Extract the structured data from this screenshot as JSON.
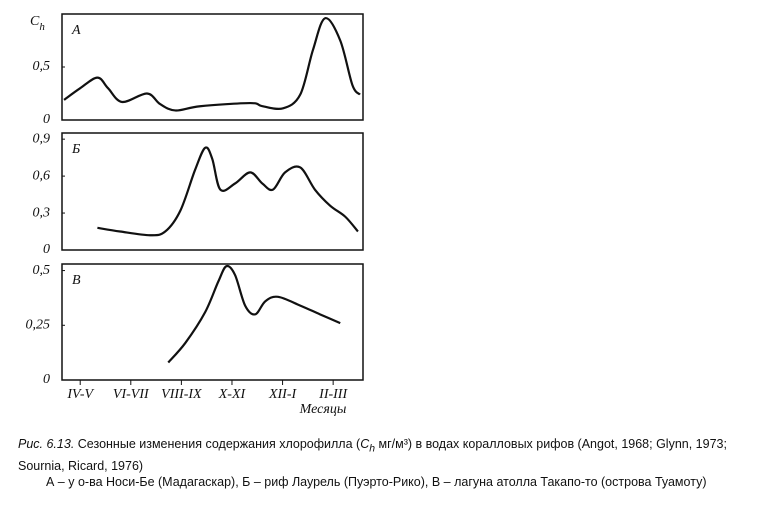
{
  "chart_data": [
    {
      "type": "line",
      "panel_label": "А",
      "ylabel": "C",
      "ylabel_sub": "h",
      "xlim": [
        -0.36,
        5.59
      ],
      "ylim": [
        0,
        1.0
      ],
      "yticks": [
        {
          "value": 0,
          "label": "0"
        },
        {
          "value": 0.5,
          "label": "0,5"
        }
      ],
      "series": [
        {
          "color": "#111111",
          "x": [
            -0.32,
            0,
            0.34,
            0.55,
            0.83,
            1.32,
            1.58,
            1.88,
            2.37,
            3.36,
            3.6,
            4.01,
            4.35,
            4.6,
            4.84,
            5.14,
            5.38,
            5.53
          ],
          "values": [
            0.19,
            0.3,
            0.4,
            0.3,
            0.17,
            0.25,
            0.15,
            0.09,
            0.13,
            0.16,
            0.13,
            0.11,
            0.24,
            0.66,
            0.96,
            0.75,
            0.33,
            0.24
          ]
        }
      ]
    },
    {
      "type": "line",
      "panel_label": "Б",
      "xlim": [
        -0.36,
        5.59
      ],
      "ylim": [
        0,
        0.95
      ],
      "yticks": [
        {
          "value": 0,
          "label": "0"
        },
        {
          "value": 0.3,
          "label": "0,3"
        },
        {
          "value": 0.6,
          "label": "0,6"
        },
        {
          "value": 0.9,
          "label": "0,9"
        }
      ],
      "series": [
        {
          "color": "#111111",
          "x": [
            0.34,
            0.79,
            1.38,
            1.68,
            1.98,
            2.27,
            2.47,
            2.61,
            2.77,
            3.06,
            3.36,
            3.6,
            3.81,
            4.05,
            4.35,
            4.64,
            4.94,
            5.24,
            5.49
          ],
          "values": [
            0.18,
            0.15,
            0.12,
            0.15,
            0.32,
            0.65,
            0.83,
            0.74,
            0.49,
            0.54,
            0.63,
            0.54,
            0.49,
            0.63,
            0.67,
            0.49,
            0.36,
            0.27,
            0.15
          ]
        }
      ]
    },
    {
      "type": "line",
      "panel_label": "В",
      "xlabel": "Месяцы",
      "xlim": [
        -0.36,
        5.59
      ],
      "ylim": [
        0,
        0.53
      ],
      "xticks": [
        {
          "value": 0,
          "label": "IV-V"
        },
        {
          "value": 1,
          "label": "VI-VII"
        },
        {
          "value": 2,
          "label": "VIII-IX"
        },
        {
          "value": 3,
          "label": "X-XI"
        },
        {
          "value": 4,
          "label": "XII-I"
        },
        {
          "value": 5,
          "label": "II-III"
        }
      ],
      "yticks": [
        {
          "value": 0,
          "label": "0"
        },
        {
          "value": 0.25,
          "label": "0,25"
        },
        {
          "value": 0.5,
          "label": "0,5"
        }
      ],
      "series": [
        {
          "color": "#111111",
          "x": [
            1.74,
            2.08,
            2.47,
            2.73,
            2.89,
            3.06,
            3.26,
            3.46,
            3.66,
            3.91,
            4.35,
            4.74,
            5.14
          ],
          "values": [
            0.08,
            0.17,
            0.31,
            0.45,
            0.52,
            0.48,
            0.34,
            0.3,
            0.36,
            0.38,
            0.34,
            0.3,
            0.26
          ]
        }
      ]
    }
  ],
  "caption": {
    "figure": "Рис. 6.13.",
    "text_before": "Сезонные изменения содержания хлорофилла (",
    "symbol": "C",
    "symbol_sub": "h",
    "text_after": "мг/м³) в водах коралловых рифов (Angot, 1968; Glynn, 1973; Sournia, Ricard, 1976)",
    "legend": "А – у о-ва Носи-Бе (Мадагаскар), Б – риф Лаурель (Пуэрто-Рико), В – лагуна атолла Такапо-то (острова Туамоту)"
  }
}
